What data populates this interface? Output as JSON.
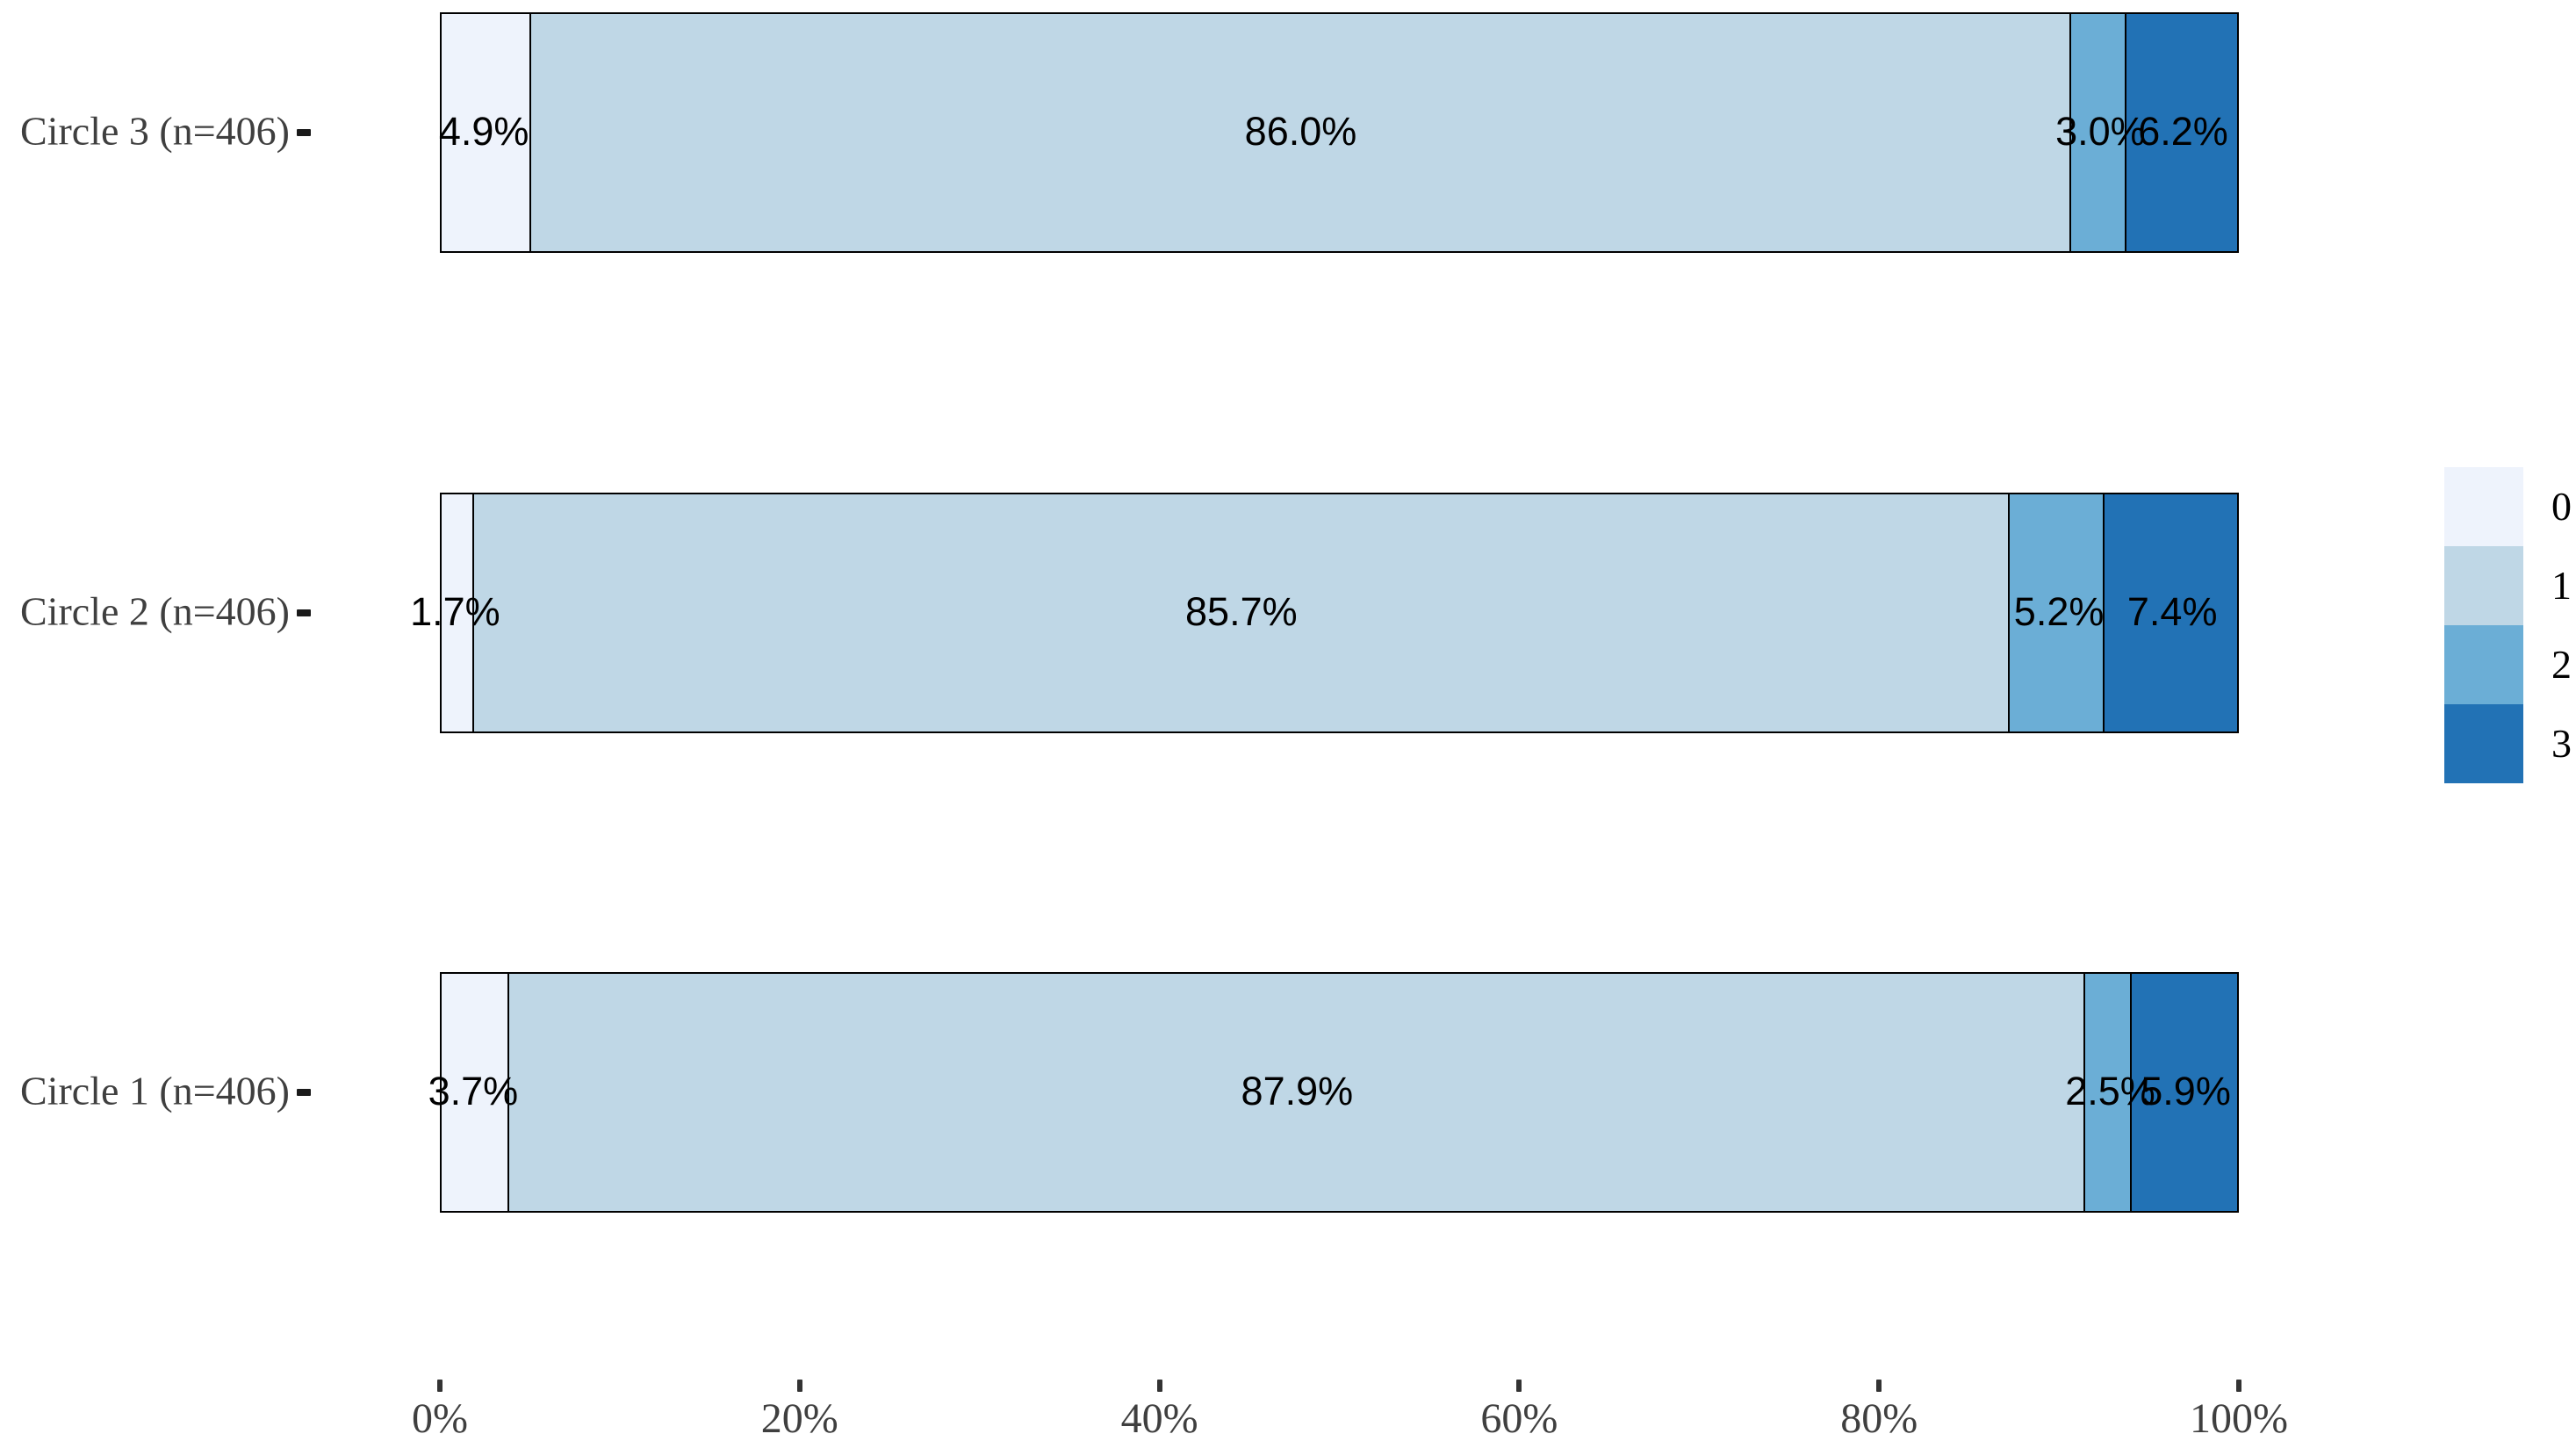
{
  "chart_data": {
    "type": "bar",
    "orientation": "horizontal",
    "stacked": true,
    "title": "",
    "xlabel": "",
    "ylabel": "",
    "xlim": [
      0,
      100
    ],
    "grid": false,
    "categories": [
      "Circle 3 (n=406)",
      "Circle 2 (n=406)",
      "Circle 1 (n=406)"
    ],
    "series": [
      {
        "name": "0",
        "color": "#EEF3FC",
        "values": [
          4.9,
          1.7,
          3.7
        ]
      },
      {
        "name": "1",
        "color": "#BFD7E6",
        "values": [
          86.0,
          85.7,
          87.9
        ]
      },
      {
        "name": "2",
        "color": "#6BAED6",
        "values": [
          3.0,
          5.2,
          2.5
        ]
      },
      {
        "name": "3",
        "color": "#2272B5",
        "values": [
          6.2,
          7.4,
          5.9
        ]
      }
    ],
    "bar_labels": [
      [
        "4.9%",
        "86.0%",
        "3.0%",
        "6.2%"
      ],
      [
        "1.7%",
        "85.7%",
        "5.2%",
        "7.4%"
      ],
      [
        "3.7%",
        "87.9%",
        "2.5%",
        "5.9%"
      ]
    ],
    "x_ticks": [
      "0%",
      "20%",
      "40%",
      "60%",
      "80%",
      "100%"
    ],
    "legend": {
      "position": "right",
      "entries": [
        "0",
        "1",
        "2",
        "3"
      ]
    },
    "colors": {
      "background": "#ffffff",
      "bar_outline": "#000000",
      "axis_text": "#3f3f3f",
      "tick_mark": "#1a1a1a",
      "bar_label_text": "#000000"
    }
  }
}
